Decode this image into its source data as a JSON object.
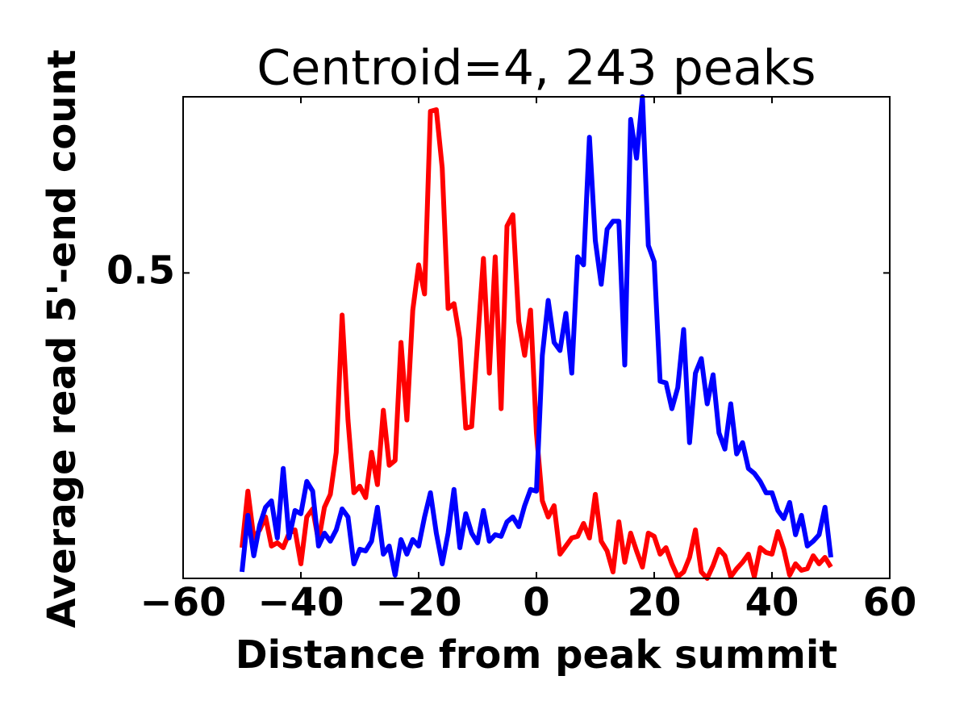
{
  "chart_data": {
    "type": "line",
    "title": "Centroid=4, 243 peaks",
    "xlabel": "Distance from peak summit",
    "ylabel": "Average read 5'-end count",
    "x": [
      -50,
      -49,
      -48,
      -47,
      -46,
      -45,
      -44,
      -43,
      -42,
      -41,
      -40,
      -39,
      -38,
      -37,
      -36,
      -35,
      -34,
      -33,
      -32,
      -31,
      -30,
      -29,
      -28,
      -27,
      -26,
      -25,
      -24,
      -23,
      -22,
      -21,
      -20,
      -19,
      -18,
      -17,
      -16,
      -15,
      -14,
      -13,
      -12,
      -11,
      -10,
      -9,
      -8,
      -7,
      -6,
      -5,
      -4,
      -3,
      -2,
      -1,
      0,
      1,
      2,
      3,
      4,
      5,
      6,
      7,
      8,
      9,
      10,
      11,
      12,
      13,
      14,
      15,
      16,
      17,
      18,
      19,
      20,
      21,
      22,
      23,
      24,
      25,
      26,
      27,
      28,
      29,
      30,
      31,
      32,
      33,
      34,
      35,
      36,
      37,
      38,
      39,
      40,
      41,
      42,
      43,
      44,
      45,
      46,
      47,
      48,
      49,
      50
    ],
    "series": [
      {
        "color": "#ff0000",
        "values": [
          0.33,
          0.365,
          0.336,
          0.341,
          0.349,
          0.331,
          0.333,
          0.33,
          0.339,
          0.341,
          0.32,
          0.349,
          0.354,
          0.334,
          0.355,
          0.363,
          0.389,
          0.474,
          0.409,
          0.364,
          0.368,
          0.361,
          0.389,
          0.369,
          0.415,
          0.381,
          0.384,
          0.457,
          0.409,
          0.477,
          0.505,
          0.487,
          0.6,
          0.601,
          0.565,
          0.478,
          0.481,
          0.459,
          0.404,
          0.405,
          0.457,
          0.509,
          0.438,
          0.51,
          0.416,
          0.529,
          0.536,
          0.47,
          0.449,
          0.477,
          0.401,
          0.359,
          0.349,
          0.356,
          0.326,
          0.331,
          0.336,
          0.337,
          0.345,
          0.336,
          0.363,
          0.334,
          0.328,
          0.315,
          0.346,
          0.321,
          0.339,
          0.328,
          0.318,
          0.339,
          0.337,
          0.326,
          0.33,
          0.32,
          0.312,
          0.315,
          0.324,
          0.341,
          0.315,
          0.311,
          0.319,
          0.329,
          0.325,
          0.312,
          0.317,
          0.321,
          0.326,
          0.312,
          0.33,
          0.327,
          0.326,
          0.34,
          0.329,
          0.313,
          0.32,
          0.316,
          0.317,
          0.325,
          0.32,
          0.324,
          0.318
        ]
      },
      {
        "color": "#0000ff",
        "values": [
          0.315,
          0.35,
          0.325,
          0.344,
          0.355,
          0.359,
          0.336,
          0.379,
          0.336,
          0.353,
          0.351,
          0.371,
          0.365,
          0.331,
          0.339,
          0.334,
          0.341,
          0.354,
          0.349,
          0.32,
          0.329,
          0.328,
          0.334,
          0.355,
          0.326,
          0.331,
          0.313,
          0.335,
          0.326,
          0.335,
          0.331,
          0.349,
          0.364,
          0.339,
          0.32,
          0.339,
          0.366,
          0.33,
          0.351,
          0.339,
          0.333,
          0.353,
          0.334,
          0.338,
          0.337,
          0.346,
          0.349,
          0.343,
          0.356,
          0.366,
          0.365,
          0.449,
          0.483,
          0.457,
          0.452,
          0.475,
          0.438,
          0.51,
          0.505,
          0.584,
          0.52,
          0.493,
          0.527,
          0.532,
          0.532,
          0.443,
          0.595,
          0.571,
          0.609,
          0.517,
          0.507,
          0.433,
          0.432,
          0.416,
          0.429,
          0.465,
          0.395,
          0.438,
          0.447,
          0.419,
          0.437,
          0.401,
          0.391,
          0.419,
          0.388,
          0.395,
          0.379,
          0.376,
          0.371,
          0.364,
          0.364,
          0.353,
          0.348,
          0.358,
          0.338,
          0.35,
          0.331,
          0.334,
          0.338,
          0.355,
          0.324
        ]
      }
    ],
    "xlim": [
      -60,
      60
    ],
    "xticks": [
      {
        "value": -60,
        "label": "−60"
      },
      {
        "value": -40,
        "label": "−40"
      },
      {
        "value": -20,
        "label": "−20"
      },
      0,
      20,
      40,
      60
    ],
    "ylim": [
      0.311,
      0.609
    ],
    "yticks": [
      0.5
    ]
  }
}
